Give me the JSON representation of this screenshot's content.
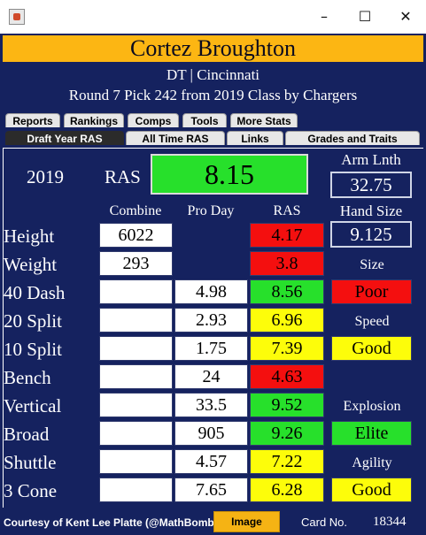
{
  "window": {
    "icons": {
      "app": "java-app-icon",
      "minimize": "minimize-icon",
      "maximize": "maximize-icon",
      "close": "close-icon"
    },
    "glyphs": {
      "minimize": "–",
      "maximize": "☐",
      "close": "✕"
    }
  },
  "header": {
    "player_name": "Cortez Broughton",
    "position_school": "DT | Cincinnati",
    "draft_info": "Round 7 Pick 242 from 2019 Class by Chargers"
  },
  "tabs_row1": [
    "Reports",
    "Rankings",
    "Comps",
    "Tools",
    "More Stats"
  ],
  "tabs_row2": [
    "Draft Year RAS",
    "All Time RAS",
    "Links",
    "Grades and Traits"
  ],
  "selected_tab": "Draft Year RAS",
  "summary": {
    "year": "2019",
    "ras_label": "RAS",
    "ras_value": "8.15",
    "arm_length_label": "Arm Lnth",
    "arm_length_value": "32.75",
    "hand_size_label": "Hand Size",
    "hand_size_value": "9.125"
  },
  "columns": {
    "combine": "Combine",
    "pro_day": "Pro Day",
    "ras": "RAS"
  },
  "rows": [
    {
      "label": "Height",
      "combine": "6022",
      "pro_day": "",
      "ras": "4.17",
      "ras_color": "red"
    },
    {
      "label": "Weight",
      "combine": "293",
      "pro_day": "",
      "ras": "3.8",
      "ras_color": "red"
    },
    {
      "label": "40 Dash",
      "combine": "",
      "pro_day": "4.98",
      "ras": "8.56",
      "ras_color": "green"
    },
    {
      "label": "20 Split",
      "combine": "",
      "pro_day": "2.93",
      "ras": "6.96",
      "ras_color": "yellow"
    },
    {
      "label": "10 Split",
      "combine": "",
      "pro_day": "1.75",
      "ras": "7.39",
      "ras_color": "yellow"
    },
    {
      "label": "Bench",
      "combine": "",
      "pro_day": "24",
      "ras": "4.63",
      "ras_color": "red"
    },
    {
      "label": "Vertical",
      "combine": "",
      "pro_day": "33.5",
      "ras": "9.52",
      "ras_color": "green"
    },
    {
      "label": "Broad",
      "combine": "",
      "pro_day": "905",
      "ras": "9.26",
      "ras_color": "green"
    },
    {
      "label": "Shuttle",
      "combine": "",
      "pro_day": "4.57",
      "ras": "7.22",
      "ras_color": "yellow"
    },
    {
      "label": "3 Cone",
      "combine": "",
      "pro_day": "7.65",
      "ras": "6.28",
      "ras_color": "yellow"
    }
  ],
  "grades": [
    {
      "label": "Size",
      "value": "Poor",
      "color": "red"
    },
    {
      "label": "Speed",
      "value": "Good",
      "color": "yellow"
    },
    {
      "label": "Explosion",
      "value": "Elite",
      "color": "green"
    },
    {
      "label": "Agility",
      "value": "Good",
      "color": "yellow"
    }
  ],
  "colors": {
    "background": "#15225f",
    "name_bar": "#fcb613",
    "green": "#27e02b",
    "yellow": "#fdfd0a",
    "red": "#f40f0f"
  },
  "footer": {
    "credit": "Courtesy of Kent Lee Platte (@MathBomb)",
    "image_button": "Image",
    "card_label": "Card No.",
    "card_number": "18344"
  }
}
